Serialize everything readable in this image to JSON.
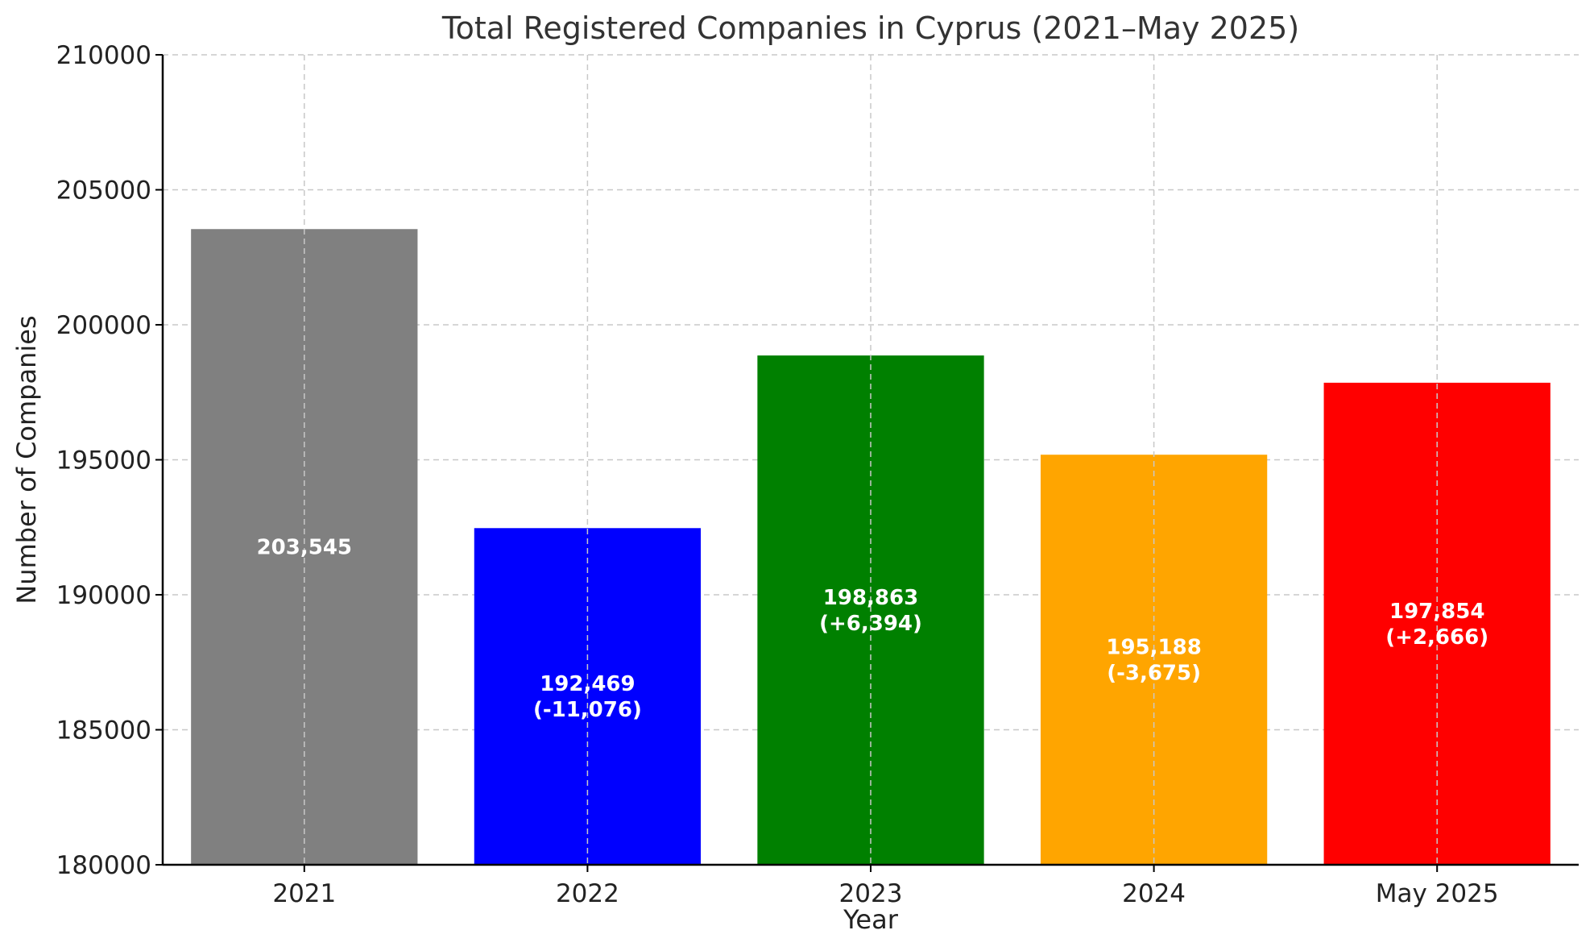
{
  "chart_data": {
    "type": "bar",
    "title": "Total Registered Companies in Cyprus (2021–May 2025)",
    "xlabel": "Year",
    "ylabel": "Number of Companies",
    "ylim": [
      180000,
      210000
    ],
    "yticks": [
      180000,
      185000,
      190000,
      195000,
      200000,
      205000,
      210000
    ],
    "grid": true,
    "categories": [
      "2021",
      "2022",
      "2023",
      "2024",
      "May 2025"
    ],
    "values": [
      203545,
      192469,
      198863,
      195188,
      197854
    ],
    "colors": [
      "#808080",
      "#0000ff",
      "#008000",
      "#ffa500",
      "#ff0000"
    ],
    "data_labels": [
      [
        "203,545"
      ],
      [
        "192,469",
        "(-11,076)"
      ],
      [
        "198,863",
        "(+6,394)"
      ],
      [
        "195,188",
        "(-3,675)"
      ],
      [
        "197,854",
        "(+2,666)"
      ]
    ]
  }
}
